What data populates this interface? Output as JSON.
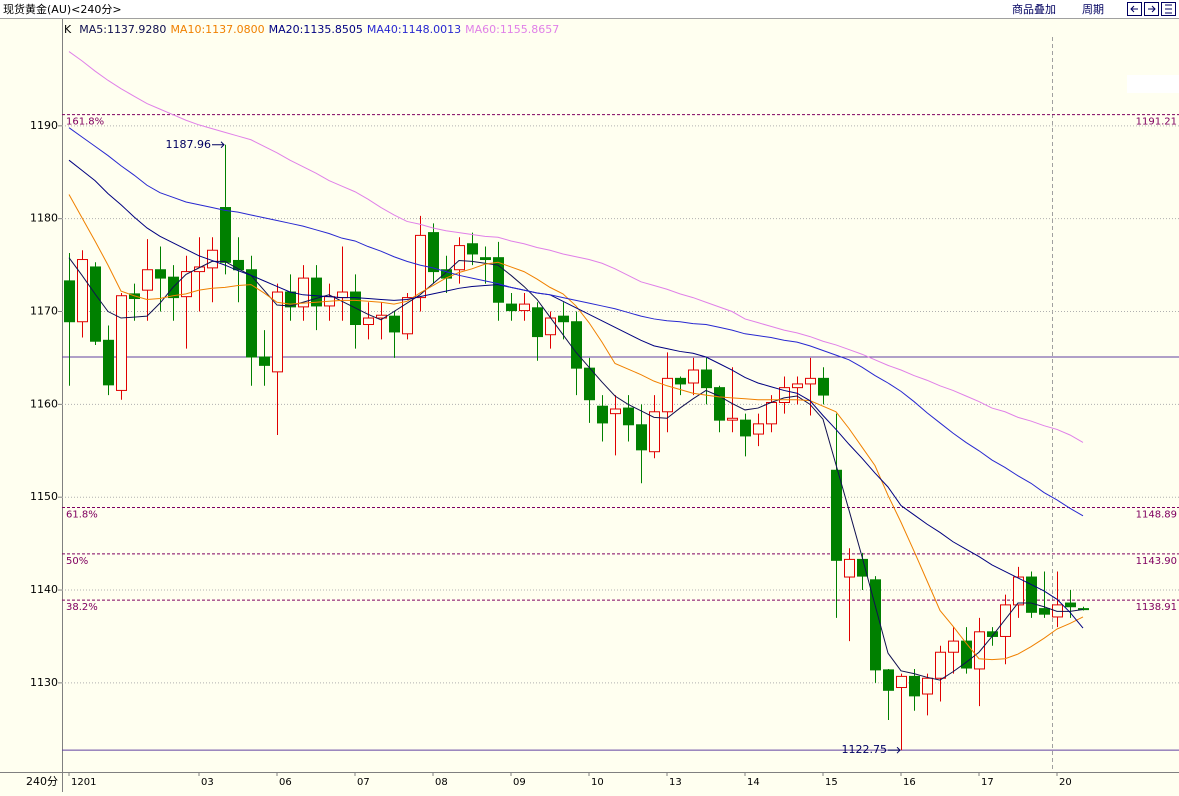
{
  "header": {
    "title": "现货黄金(AU)<240分>",
    "buttons": [
      "商品叠加",
      "周期"
    ]
  },
  "chart_data": {
    "type": "candlestick",
    "kind_label": "K",
    "period_label": "240分",
    "categories": [
      "1201",
      null,
      null,
      null,
      null,
      null,
      null,
      null,
      null,
      null,
      "03",
      null,
      null,
      null,
      null,
      null,
      "06",
      null,
      null,
      null,
      null,
      null,
      "07",
      null,
      null,
      null,
      null,
      null,
      "08",
      null,
      null,
      null,
      null,
      null,
      "09",
      null,
      null,
      null,
      null,
      null,
      "10",
      null,
      null,
      null,
      null,
      null,
      "13",
      null,
      null,
      null,
      null,
      null,
      "14",
      null,
      null,
      null,
      null,
      null,
      "15",
      null,
      null,
      null,
      null,
      null,
      "16",
      null,
      null,
      null,
      null,
      null,
      "17",
      null,
      null,
      null,
      null,
      null,
      "20",
      null,
      null
    ],
    "open": [
      1173.3,
      1168.9,
      1174.8,
      1166.9,
      1161.5,
      1171.9,
      1172.3,
      1174.5,
      1173.7,
      1171.6,
      1174.3,
      1174.7,
      1181.2,
      1175.5,
      1174.5,
      1165.1,
      1163.5,
      1172.1,
      1170.5,
      1173.6,
      1170.6,
      1171.5,
      1172.1,
      1168.6,
      1169.3,
      1169.5,
      1167.6,
      1171.5,
      1178.5,
      1174.5,
      1174.5,
      1177.3,
      1175.8,
      1175.8,
      1170.8,
      1170.1,
      1170.4,
      1167.5,
      1169.5,
      1168.9,
      1163.9,
      1159.8,
      1159,
      1159.6,
      1157.8,
      1154.9,
      1159.2,
      1162.8,
      1162.3,
      1163.7,
      1161.8,
      1158.3,
      1158.3,
      1156.8,
      1157.9,
      1160.2,
      1161.8,
      1162.2,
      1162.8,
      1152.9,
      1141.4,
      1143.3,
      1141.1,
      1131.4,
      1129.5,
      1130.7,
      1128.8,
      1130.5,
      1133.3,
      1134.5,
      1131.5,
      1135.5,
      1135,
      1138.4,
      1141.4,
      1138,
      1137.1,
      1138.6,
      1138
    ],
    "high": [
      1176.3,
      1176.6,
      1175.3,
      1168.5,
      1172,
      1173,
      1177.8,
      1177,
      1175,
      1176,
      1178,
      1178,
      1187.96,
      1178,
      1176,
      1168,
      1173,
      1174,
      1175,
      1175,
      1173,
      1177,
      1174,
      1171,
      1171,
      1170,
      1172,
      1180.3,
      1179.5,
      1176,
      1178,
      1178.5,
      1177,
      1177.5,
      1172,
      1172,
      1171,
      1170,
      1171,
      1170,
      1165,
      1161,
      1161,
      1161,
      1160,
      1161,
      1165.6,
      1163,
      1165,
      1165,
      1162,
      1164,
      1159,
      1159,
      1161,
      1163,
      1163,
      1165,
      1164,
      1159,
      1144.5,
      1144,
      1141.5,
      1131.5,
      1131,
      1131.5,
      1131,
      1134,
      1136,
      1136,
      1137,
      1136,
      1139.5,
      1142.5,
      1142,
      1142,
      1142,
      1140,
      1138.2
    ],
    "low": [
      1162,
      1167.2,
      1166.4,
      1161,
      1160.5,
      1169,
      1169,
      1170,
      1169,
      1166,
      1170,
      1171,
      1174,
      1171,
      1162,
      1162,
      1156.7,
      1169,
      1169,
      1168,
      1169,
      1169,
      1166,
      1167,
      1167,
      1165,
      1167,
      1170,
      1173,
      1172,
      1173,
      1175,
      1173,
      1169,
      1169,
      1169,
      1164.7,
      1166,
      1167,
      1161,
      1158,
      1156,
      1154.5,
      1156,
      1151.5,
      1154.2,
      1157,
      1161,
      1161,
      1160,
      1157,
      1157,
      1154.4,
      1155.5,
      1157,
      1159,
      1160,
      1158.8,
      1160,
      1137,
      1134.5,
      1140,
      1130,
      1126,
      1122.75,
      1127,
      1126.5,
      1128,
      1131,
      1131,
      1127.5,
      1134,
      1132,
      1137,
      1137,
      1137,
      1136,
      1137,
      1137.8
    ],
    "close": [
      1168.9,
      1175.6,
      1166.8,
      1162.1,
      1171.7,
      1171.4,
      1174.5,
      1173.6,
      1171.5,
      1174.3,
      1174.8,
      1176.6,
      1175.3,
      1174.5,
      1165.1,
      1164.2,
      1172.1,
      1170.5,
      1173.6,
      1170.6,
      1171.6,
      1172.1,
      1168.6,
      1169.3,
      1169.6,
      1167.8,
      1171.5,
      1178.2,
      1174.3,
      1173.6,
      1177.1,
      1176.2,
      1175.6,
      1171,
      1170.1,
      1170.8,
      1167.3,
      1169.3,
      1168.9,
      1163.9,
      1160.5,
      1158,
      1159.5,
      1157.8,
      1155.1,
      1159.2,
      1162.8,
      1162.2,
      1163.7,
      1161.8,
      1158.3,
      1158.5,
      1156.6,
      1157.9,
      1160.2,
      1161.8,
      1162.2,
      1162.8,
      1161,
      1143.2,
      1143.3,
      1141.5,
      1131.4,
      1129.2,
      1130.7,
      1128.6,
      1130.5,
      1133.3,
      1134.5,
      1131.6,
      1135.5,
      1135,
      1138.4,
      1141.4,
      1137.6,
      1137.4,
      1138.4,
      1138.2,
      1137.9
    ],
    "up_color": "#e00000",
    "down_color": "#008000",
    "series": [
      {
        "name": "MA5:1137.9280",
        "color": "#101050",
        "values": [
          1175.8,
          1173.9,
          1171.9,
          1170,
          1169.3,
          1169.4,
          1169.5,
          1170.9,
          1172.6,
          1174,
          1174.7,
          1175.4,
          1175.4,
          1174.6,
          1173.9,
          1172.3,
          1170.7,
          1170.6,
          1171,
          1171.4,
          1171.8,
          1171.1,
          1170.4,
          1169.7,
          1169.1,
          1170,
          1170.9,
          1171.8,
          1173,
          1174.2,
          1175.5,
          1175.4,
          1175.2,
          1175,
          1173.9,
          1172.7,
          1171.3,
          1169.4,
          1167.5,
          1165.6,
          1164,
          1162.4,
          1160.9,
          1160,
          1159.3,
          1158.6,
          1158.5,
          1159.6,
          1160.6,
          1161.5,
          1160.9,
          1160.1,
          1159.4,
          1159.6,
          1160.2,
          1160.7,
          1160.9,
          1160,
          1158.4,
          1153.5,
          1148.6,
          1143.6,
          1138.4,
          1133.2,
          1131.3,
          1131,
          1130.6,
          1130.3,
          1131.2,
          1132.2,
          1133.3,
          1135,
          1136.8,
          1138.6,
          1138.6,
          1138.2,
          1137.7,
          1137.7,
          1137.9
        ]
      },
      {
        "name": "MA10:1137.0800",
        "color": "#f08000",
        "values": [
          1182.6,
          1180.1,
          1177.6,
          1175,
          1172.2,
          1171.7,
          1171.3,
          1171.4,
          1171.7,
          1171.9,
          1172.3,
          1172.5,
          1172.6,
          1172.8,
          1172.9,
          1172,
          1171,
          1170.8,
          1170.9,
          1171,
          1171.1,
          1171.2,
          1171.2,
          1171.1,
          1171,
          1170.8,
          1171.1,
          1172,
          1172.8,
          1173.6,
          1174.2,
          1174.6,
          1175.1,
          1175.3,
          1174.8,
          1174.3,
          1173.5,
          1172.6,
          1171.9,
          1170.6,
          1168.8,
          1166.7,
          1164.4,
          1163.8,
          1163.2,
          1162.5,
          1162,
          1161.6,
          1161.2,
          1161,
          1160.8,
          1160.7,
          1160.6,
          1160.5,
          1160.5,
          1160.5,
          1160.5,
          1160.4,
          1159.8,
          1159.2,
          1157.4,
          1155.4,
          1153.4,
          1150.2,
          1147.3,
          1144.2,
          1141,
          1137.8,
          1136.1,
          1134.3,
          1132.6,
          1132.5,
          1132.6,
          1133.1,
          1133.9,
          1134.8,
          1135.8,
          1136.4,
          1137.1
        ]
      },
      {
        "name": "MA20:1135.8505",
        "color": "#000080",
        "values": [
          1186.3,
          1185.2,
          1184.1,
          1182.7,
          1181.5,
          1180.2,
          1179,
          1178.1,
          1177.4,
          1176.7,
          1176,
          1175.5,
          1175,
          1174.4,
          1173.9,
          1173.3,
          1172.7,
          1172.1,
          1171.8,
          1171.7,
          1171.6,
          1171.5,
          1171.5,
          1171.4,
          1171.3,
          1171.2,
          1171.3,
          1171.6,
          1171.9,
          1172.2,
          1172.5,
          1172.7,
          1172.8,
          1172.9,
          1172.6,
          1172.3,
          1172,
          1171.8,
          1171.1,
          1170.4,
          1169.7,
          1169,
          1168.3,
          1167.6,
          1166.9,
          1166.3,
          1166,
          1165.7,
          1165.5,
          1165.1,
          1164.4,
          1163.7,
          1162.9,
          1162.3,
          1161.9,
          1161.5,
          1161.2,
          1160.4,
          1158.8,
          1157.3,
          1155.7,
          1154.2,
          1152.6,
          1151.1,
          1149.1,
          1148.1,
          1147.1,
          1146.2,
          1145.2,
          1144.4,
          1143.6,
          1142.7,
          1142,
          1141.3,
          1140.6,
          1139.9,
          1139,
          1137.6,
          1135.9
        ]
      },
      {
        "name": "MA40:1148.0013",
        "color": "#2828d0",
        "values": [
          1189.8,
          1188.8,
          1187.8,
          1186.8,
          1185.7,
          1184.7,
          1183.6,
          1182.8,
          1182.3,
          1181.8,
          1181.5,
          1181.2,
          1180.9,
          1180.7,
          1180.4,
          1180.1,
          1179.8,
          1179.5,
          1179.2,
          1178.8,
          1178.4,
          1177.9,
          1177.6,
          1177,
          1176.5,
          1175.9,
          1175.4,
          1175,
          1174.7,
          1174.3,
          1173.9,
          1173.6,
          1173.3,
          1173,
          1172.6,
          1172.3,
          1172,
          1171.8,
          1171.5,
          1171.2,
          1170.9,
          1170.6,
          1170.3,
          1169.9,
          1169.5,
          1169.2,
          1169,
          1168.9,
          1168.7,
          1168.6,
          1168.3,
          1168,
          1167.6,
          1167.4,
          1167.2,
          1166.9,
          1166.7,
          1166.3,
          1165.8,
          1165.3,
          1164.8,
          1164,
          1163.1,
          1162.3,
          1161.4,
          1160.3,
          1159.1,
          1158,
          1156.9,
          1155.9,
          1155,
          1154,
          1153.2,
          1152.3,
          1151.5,
          1150.5,
          1149.7,
          1148.8,
          1148
        ]
      },
      {
        "name": "MA60:1155.8657",
        "color": "#e080e8",
        "values": [
          1198,
          1197,
          1195.9,
          1194.9,
          1194,
          1193.2,
          1192.4,
          1191.8,
          1191.2,
          1190.6,
          1190.1,
          1189.7,
          1189.3,
          1188.9,
          1188.5,
          1187.8,
          1187.1,
          1186.3,
          1185.6,
          1184.9,
          1184.1,
          1183.5,
          1182.9,
          1182.1,
          1181.2,
          1180.4,
          1179.7,
          1179.4,
          1179,
          1178.7,
          1178.5,
          1178.3,
          1178.1,
          1178,
          1177.6,
          1177.3,
          1176.9,
          1176.6,
          1176.2,
          1175.9,
          1175.6,
          1175.2,
          1174.6,
          1173.9,
          1173.2,
          1172.8,
          1172.4,
          1171.9,
          1171.5,
          1171,
          1170.5,
          1170,
          1169.2,
          1168.8,
          1168.4,
          1168,
          1167.7,
          1167.3,
          1166.8,
          1166.4,
          1165.9,
          1165.4,
          1164.8,
          1164.2,
          1163.7,
          1163.1,
          1162.6,
          1162,
          1161.5,
          1160.9,
          1160.3,
          1159.6,
          1159.2,
          1158.6,
          1158.2,
          1157.7,
          1157.3,
          1156.7,
          1155.9
        ]
      }
    ],
    "fib": {
      "names": [
        "161.8%",
        "61.8%",
        "50%",
        "38.2%"
      ],
      "values": [
        1191.21,
        1148.89,
        1143.9,
        1138.91
      ],
      "value_labels": [
        "1191.21",
        "1148.89",
        "1143.90",
        "1138.91"
      ],
      "color": "#800060"
    },
    "hlines": [
      1165.1,
      1122.75
    ],
    "hline_color": "#6040a0",
    "max_label": 1187.96,
    "min_label": 1122.75,
    "ylim": [
      1120.4,
      1201.4
    ],
    "yticks": [
      1130,
      1140,
      1150,
      1160,
      1170,
      1180,
      1190
    ],
    "grid": true
  }
}
